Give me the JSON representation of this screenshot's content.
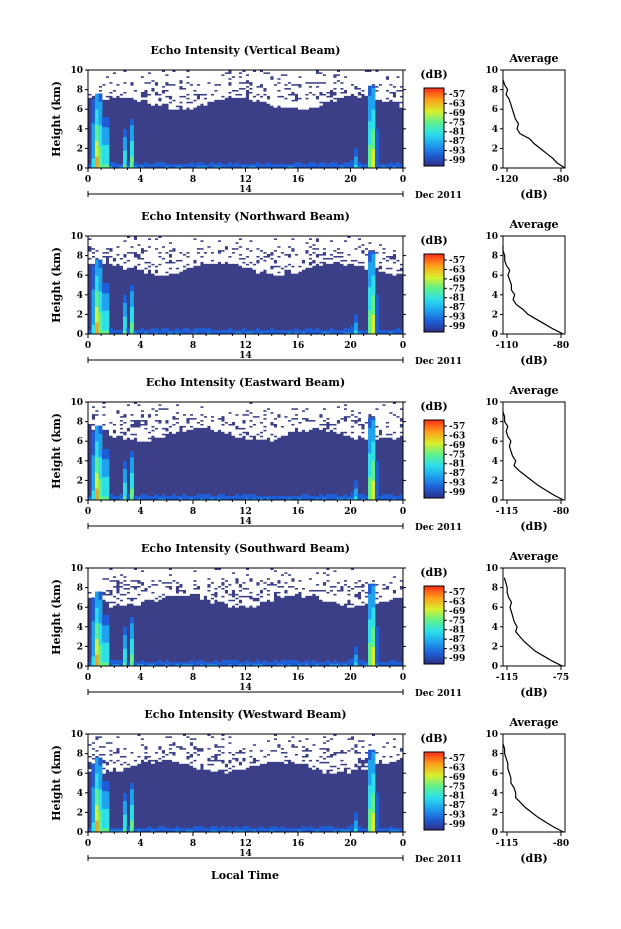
{
  "xlabel": "Local Time",
  "date_day": "14",
  "date_suffix": "Dec 2011",
  "colorbar_unit": "(dB)",
  "colorbar_ticks": [
    "-57",
    "-63",
    "-69",
    "-75",
    "-81",
    "-87",
    "-93",
    "-99"
  ],
  "colors": {
    "background_echo": "#3a3f87",
    "missing": "#ffffff",
    "scale": [
      "#2d2f85",
      "#1e5fd8",
      "#1fa3ef",
      "#2de0e8",
      "#61f08a",
      "#d8f02c",
      "#ff9f1a",
      "#ff2b16"
    ]
  },
  "chart_data": [
    {
      "type": "heatmap",
      "title": "Echo Intensity (Vertical Beam)",
      "ylabel": "Height (km)",
      "xlim": [
        0,
        24
      ],
      "ylim": [
        0,
        10
      ],
      "xticks": [
        "0",
        "4",
        "8",
        "12",
        "16",
        "20",
        "0"
      ],
      "yticks": [
        "0",
        "2",
        "4",
        "6",
        "8",
        "10"
      ],
      "profile": {
        "title": "Average",
        "xlabel": "(dB)",
        "xlim": [
          -120,
          -80
        ],
        "xticks": [
          "-120",
          "-80"
        ],
        "yticks": [
          "0",
          "2",
          "4",
          "6",
          "8",
          "10"
        ],
        "height": [
          0,
          0.5,
          1,
          1.5,
          2,
          2.5,
          3,
          3.5,
          4,
          4.5,
          5,
          5.5,
          6,
          6.5,
          7,
          7.5,
          8,
          8.5,
          9
        ],
        "db": [
          -80,
          -85,
          -88,
          -92,
          -96,
          -100,
          -103,
          -109,
          -111,
          -110,
          -112,
          -113,
          -114,
          -115,
          -116,
          -118,
          -117,
          -119,
          -120
        ]
      }
    },
    {
      "type": "heatmap",
      "title": "Echo Intensity (Northward Beam)",
      "ylabel": "Height (km)",
      "xlim": [
        0,
        24
      ],
      "ylim": [
        0,
        10
      ],
      "xticks": [
        "0",
        "4",
        "8",
        "12",
        "16",
        "20",
        "0"
      ],
      "yticks": [
        "0",
        "2",
        "4",
        "6",
        "8",
        "10"
      ],
      "profile": {
        "title": "Average",
        "xlabel": "(dB)",
        "xlim": [
          -115,
          -78
        ],
        "xticks": [
          "-110",
          "-80"
        ],
        "yticks": [
          "0",
          "2",
          "4",
          "6",
          "8",
          "10"
        ],
        "height": [
          0,
          0.5,
          1,
          1.5,
          2,
          2.5,
          3,
          3.5,
          4,
          4.5,
          5,
          5.5,
          6,
          6.5,
          7,
          7.5,
          8,
          8.5,
          9
        ],
        "db": [
          -79,
          -85,
          -90,
          -95,
          -100,
          -103,
          -107,
          -109,
          -108,
          -110,
          -110,
          -111,
          -112,
          -111,
          -113,
          -114,
          -114,
          -115,
          -115
        ]
      }
    },
    {
      "type": "heatmap",
      "title": "Echo Intensity (Eastward Beam)",
      "ylabel": "Height (km)",
      "xlim": [
        0,
        24
      ],
      "ylim": [
        0,
        10
      ],
      "xticks": [
        "0",
        "4",
        "8",
        "12",
        "16",
        "20",
        "0"
      ],
      "yticks": [
        "0",
        "2",
        "4",
        "6",
        "8",
        "10"
      ],
      "profile": {
        "title": "Average",
        "xlabel": "(dB)",
        "xlim": [
          -118,
          -79
        ],
        "xticks": [
          "-115",
          "-80"
        ],
        "yticks": [
          "0",
          "2",
          "4",
          "6",
          "8",
          "10"
        ],
        "height": [
          0,
          0.5,
          1,
          1.5,
          2,
          2.5,
          3,
          3.5,
          4,
          4.5,
          5,
          5.5,
          6,
          6.5,
          7,
          7.5,
          8,
          8.5,
          9
        ],
        "db": [
          -80,
          -86,
          -91,
          -96,
          -100,
          -104,
          -108,
          -111,
          -110,
          -112,
          -113,
          -114,
          -113,
          -115,
          -116,
          -115,
          -117,
          -117,
          -118
        ]
      }
    },
    {
      "type": "heatmap",
      "title": "Echo Intensity (Southward Beam)",
      "ylabel": "Height (km)",
      "xlim": [
        0,
        24
      ],
      "ylim": [
        0,
        10
      ],
      "xticks": [
        "0",
        "4",
        "8",
        "12",
        "16",
        "20",
        "0"
      ],
      "yticks": [
        "0",
        "2",
        "4",
        "6",
        "8",
        "10"
      ],
      "profile": {
        "title": "Average",
        "xlabel": "(dB)",
        "xlim": [
          -118,
          -74
        ],
        "xticks": [
          "-115",
          "-75"
        ],
        "yticks": [
          "0",
          "2",
          "4",
          "6",
          "8",
          "10"
        ],
        "height": [
          0,
          0.5,
          1,
          1.5,
          2,
          2.5,
          3,
          3.5,
          4,
          4.5,
          5,
          5.5,
          6,
          6.5,
          7,
          7.5,
          8,
          8.5,
          9
        ],
        "db": [
          -76,
          -83,
          -89,
          -95,
          -99,
          -103,
          -106,
          -109,
          -108,
          -110,
          -111,
          -112,
          -113,
          -112,
          -114,
          -115,
          -115,
          -116,
          -117
        ]
      }
    },
    {
      "type": "heatmap",
      "title": "Echo Intensity (Westward Beam)",
      "ylabel": "Height (km)",
      "xlim": [
        0,
        24
      ],
      "ylim": [
        0,
        10
      ],
      "xticks": [
        "0",
        "4",
        "8",
        "12",
        "16",
        "20",
        "0"
      ],
      "yticks": [
        "0",
        "2",
        "4",
        "6",
        "8",
        "10"
      ],
      "profile": {
        "title": "Average",
        "xlabel": "(dB)",
        "xlim": [
          -118,
          -79
        ],
        "xticks": [
          "-115",
          "-80"
        ],
        "yticks": [
          "0",
          "2",
          "4",
          "6",
          "8",
          "10"
        ],
        "height": [
          0,
          0.5,
          1,
          1.5,
          2,
          2.5,
          3,
          3.5,
          4,
          4.5,
          5,
          5.5,
          6,
          6.5,
          7,
          7.5,
          8,
          8.5,
          9
        ],
        "db": [
          -80,
          -86,
          -91,
          -96,
          -100,
          -104,
          -107,
          -110,
          -110,
          -111,
          -113,
          -113,
          -114,
          -115,
          -115,
          -116,
          -117,
          -117,
          -118
        ]
      }
    }
  ]
}
